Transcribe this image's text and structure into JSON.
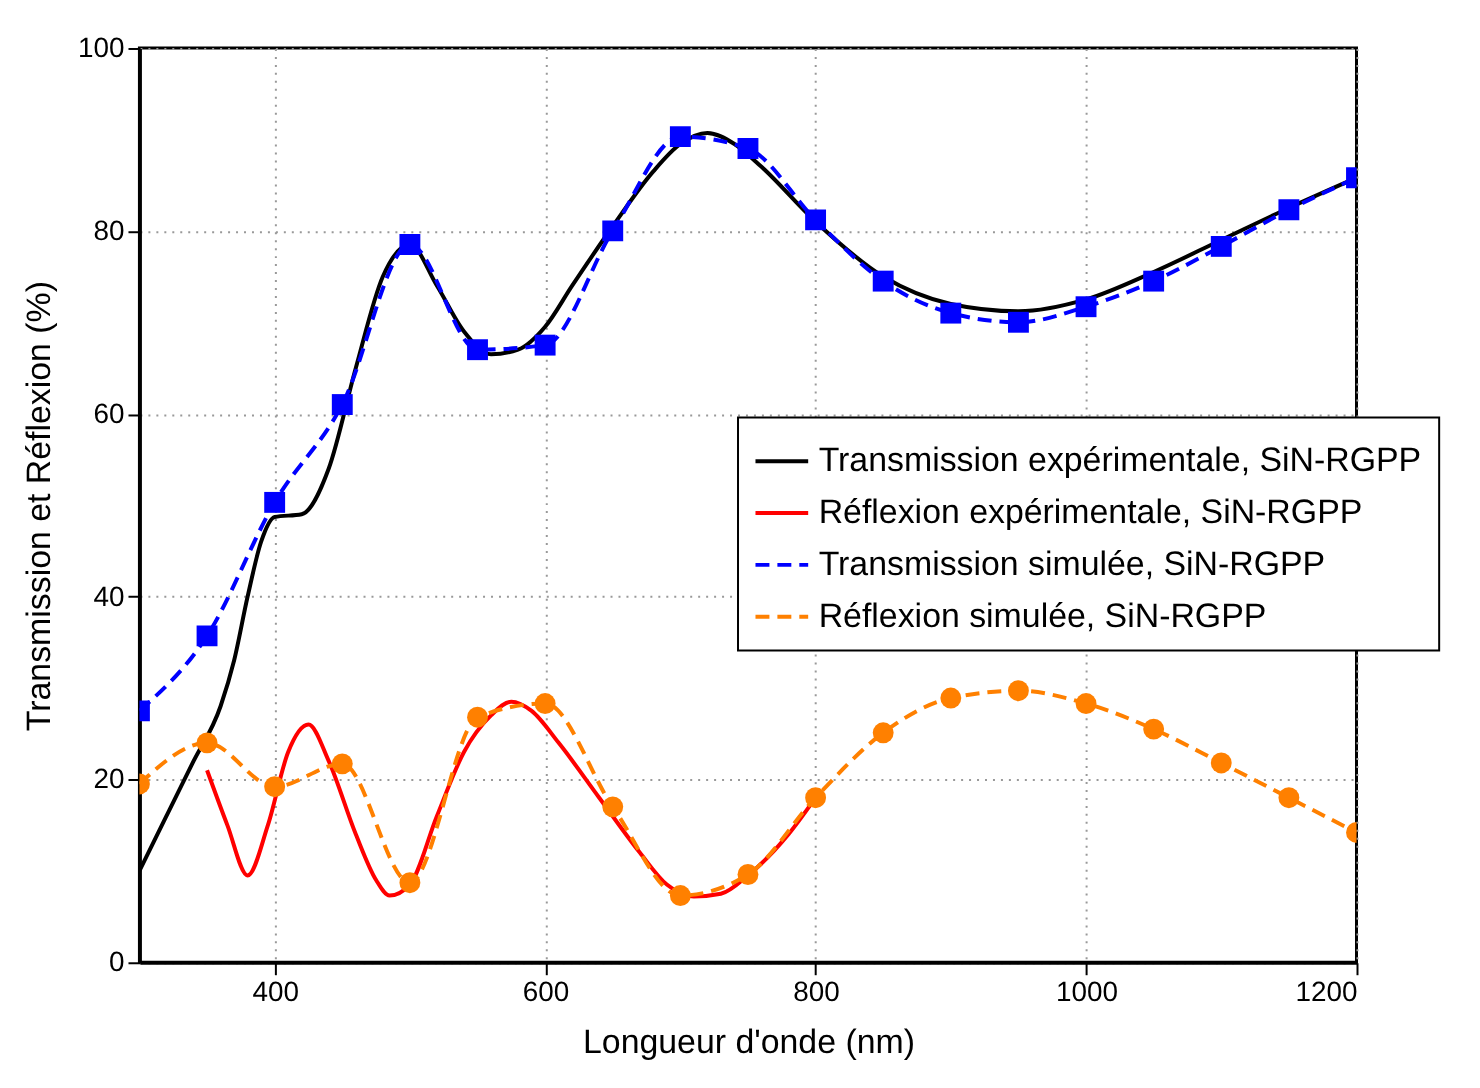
{
  "chart_data": {
    "type": "line",
    "xlabel": "Longueur d'onde (nm)",
    "ylabel": "Transmission et Réflexion (%)",
    "xlim": [
      300,
      1200
    ],
    "xticks": [
      400,
      600,
      800,
      1000,
      1200
    ],
    "ylim": [
      0,
      100
    ],
    "yticks": [
      0,
      20,
      40,
      60,
      80,
      100
    ],
    "grid": true,
    "legend": "right",
    "series": [
      {
        "name": "Transmission expérimentale, SiN-RGPP",
        "color": "#000000",
        "line_style": "solid",
        "marker": "none",
        "x": [
          300,
          320,
          340,
          360,
          370,
          380,
          390,
          400,
          420,
          440,
          460,
          480,
          500,
          520,
          540,
          560,
          580,
          600,
          620,
          650,
          680,
          700,
          720,
          740,
          760,
          800,
          850,
          900,
          950,
          1000,
          1050,
          1100,
          1150,
          1200
        ],
        "values": [
          10,
          16,
          22,
          28,
          33,
          40,
          46,
          48.7,
          49,
          54,
          65,
          75,
          78.5,
          74,
          69,
          66.5,
          67,
          69.5,
          74,
          80.5,
          86.5,
          89.5,
          90.7,
          89.5,
          87,
          81,
          75,
          72,
          71.2,
          72.5,
          75.5,
          79,
          82.5,
          85.8
        ]
      },
      {
        "name": "Réflexion expérimentale, SiN-RGPP",
        "color": "#ff0000",
        "line_style": "solid",
        "marker": "none",
        "x": [
          350,
          365,
          380,
          395,
          410,
          425,
          440,
          460,
          475,
          485,
          500,
          520,
          540,
          560,
          575,
          590,
          610,
          640,
          670,
          690,
          710,
          730,
          750,
          780,
          800
        ],
        "values": [
          21,
          15,
          9.5,
          15,
          23,
          26,
          22,
          14,
          9,
          7.3,
          8.5,
          16,
          23,
          27,
          28.5,
          27.5,
          24,
          18,
          12,
          8.5,
          7.2,
          7.5,
          9.5,
          14,
          18
        ]
      },
      {
        "name": "Transmission simulée, SiN-RGPP",
        "color": "#0000ff",
        "line_style": "dashed",
        "marker": "square",
        "x": [
          300,
          350,
          400,
          450,
          500,
          550,
          600,
          650,
          700,
          750,
          800,
          850,
          900,
          950,
          1000,
          1050,
          1100,
          1150,
          1200
        ],
        "values": [
          27.5,
          35.7,
          50.3,
          61,
          78.5,
          67,
          67.5,
          80,
          90.3,
          89,
          81.2,
          74.5,
          71,
          70,
          71.7,
          74.5,
          78.3,
          82.3,
          85.8
        ]
      },
      {
        "name": "Réflexion simulée, SiN-RGPP",
        "color": "#ff8000",
        "line_style": "dashed",
        "marker": "circle",
        "x": [
          300,
          350,
          400,
          450,
          500,
          550,
          600,
          650,
          700,
          750,
          800,
          850,
          900,
          950,
          1000,
          1050,
          1100,
          1150,
          1200
        ],
        "values": [
          19.5,
          24,
          19.2,
          21.7,
          8.7,
          26.8,
          28.3,
          17,
          7.3,
          9.6,
          18,
          25.1,
          28.9,
          29.7,
          28.3,
          25.5,
          21.8,
          18,
          14.2
        ]
      }
    ]
  }
}
